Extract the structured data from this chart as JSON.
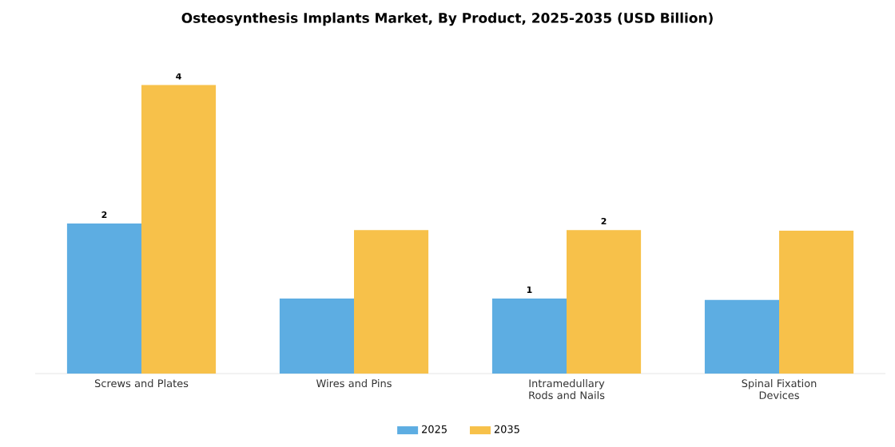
{
  "chart_data": {
    "type": "bar",
    "title": "Osteosynthesis Implants Market, By Product, 2025-2035 (USD Billion)",
    "categories": [
      "Screws and Plates",
      "Wires and Pins",
      "Intramedullary Rods and Nails",
      "Spinal Fixation Devices"
    ],
    "series": [
      {
        "name": "2025",
        "color": "#5dade2",
        "values": [
          2.08,
          1.04,
          1.04,
          1.02
        ],
        "value_labels": [
          "2",
          null,
          "1",
          null
        ]
      },
      {
        "name": "2035",
        "color": "#f7c14a",
        "values": [
          4.0,
          1.99,
          1.99,
          1.98
        ],
        "value_labels": [
          "4",
          null,
          "2",
          null
        ]
      }
    ],
    "legend": "bottom"
  }
}
